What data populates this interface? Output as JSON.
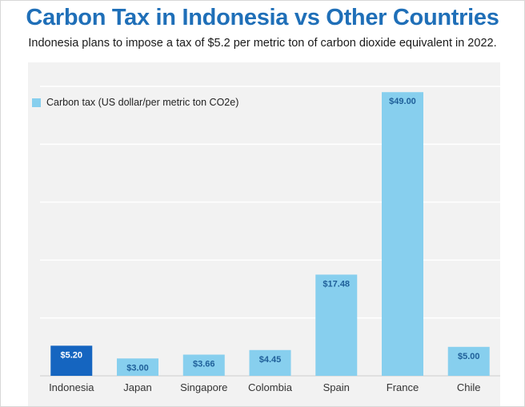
{
  "header": {
    "title": "Carbon Tax in Indonesia vs Other Countries",
    "subtitle": "Indonesia plans to impose a tax of $5.2 per metric ton of carbon dioxide equivalent in 2022."
  },
  "colors": {
    "highlight_bar": "#1565c0",
    "bar": "#87cfee",
    "highlight_label": "#ffffff",
    "label": "#1f5f99",
    "title": "#1f6fb8",
    "grid": "#ffffff",
    "plot_background": "#f2f2f2"
  },
  "chart_data": {
    "type": "bar",
    "title": "Carbon Tax in Indonesia vs Other Countries",
    "subtitle": "Indonesia plans to impose a tax of $5.2 per metric ton of carbon dioxide equivalent in 2022.",
    "categories": [
      "Indonesia",
      "Japan",
      "Singapore",
      "Colombia",
      "Spain",
      "France",
      "Chile"
    ],
    "series": [
      {
        "name": "Carbon tax (US dollar/per metric ton CO2e)",
        "values": [
          5.2,
          3.0,
          3.66,
          4.45,
          17.48,
          49.0,
          5.0
        ],
        "labels": [
          "$5.20",
          "$3.00",
          "$3.66",
          "$4.45",
          "$17.48",
          "$49.00",
          "$5.00"
        ]
      }
    ],
    "highlight_category": "Indonesia",
    "ylim": [
      0,
      50
    ],
    "grid": true,
    "legend": "top-left",
    "xlabel": "",
    "ylabel": ""
  }
}
